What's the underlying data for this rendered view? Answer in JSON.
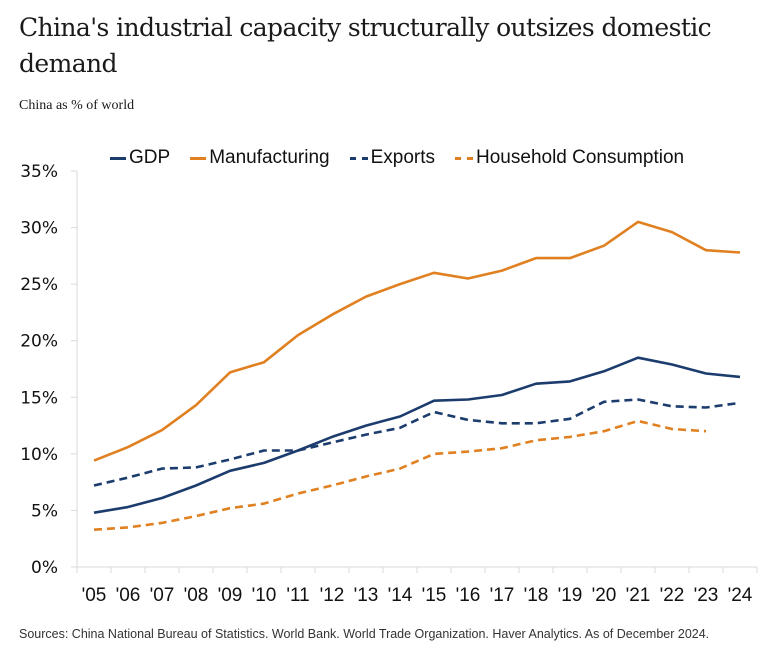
{
  "header": {
    "title": "China's industrial capacity structurally outsizes domestic demand",
    "subtitle": "China as % of world"
  },
  "footer": {
    "source": "Sources: China National Bureau of Statistics. World Bank. World Trade Organization. Haver Analytics. As of December 2024."
  },
  "colors": {
    "navy": "#1c3c6e",
    "orange": "#e08020",
    "axis": "#d9d9d9"
  },
  "chart_data": {
    "type": "line",
    "title": "China's industrial capacity structurally outsizes domestic demand",
    "subtitle": "China as % of world",
    "xlabel": "",
    "ylabel": "",
    "ylim": [
      0,
      35
    ],
    "yticks": [
      0,
      5,
      10,
      15,
      20,
      25,
      30,
      35
    ],
    "ytick_labels": [
      "0%",
      "5%",
      "10%",
      "15%",
      "20%",
      "25%",
      "30%",
      "35%"
    ],
    "grid": false,
    "legend_position": "top",
    "categories": [
      "'05",
      "'06",
      "'07",
      "'08",
      "'09",
      "'10",
      "'11",
      "'12",
      "'13",
      "'14",
      "'15",
      "'16",
      "'17",
      "'18",
      "'19",
      "'20",
      "'21",
      "'22",
      "'23",
      "'24"
    ],
    "series": [
      {
        "name": "GDP",
        "color": "#1c3c6e",
        "style": "solid",
        "values": [
          4.8,
          5.3,
          6.1,
          7.2,
          8.5,
          9.2,
          10.3,
          11.5,
          12.5,
          13.3,
          14.7,
          14.8,
          15.2,
          16.2,
          16.4,
          17.3,
          18.5,
          17.9,
          17.1,
          16.8
        ]
      },
      {
        "name": "Manufacturing",
        "color": "#e08020",
        "style": "solid",
        "values": [
          9.4,
          10.6,
          12.1,
          14.3,
          17.2,
          18.1,
          20.5,
          22.3,
          23.9,
          25.0,
          26.0,
          25.5,
          26.2,
          27.3,
          27.3,
          28.4,
          30.5,
          29.6,
          28.0,
          27.8
        ]
      },
      {
        "name": "Exports",
        "color": "#1c3c6e",
        "style": "dashed",
        "values": [
          7.2,
          7.9,
          8.7,
          8.8,
          9.5,
          10.3,
          10.3,
          11.0,
          11.7,
          12.3,
          13.7,
          13.0,
          12.7,
          12.7,
          13.1,
          14.6,
          14.8,
          14.2,
          14.1,
          14.5
        ]
      },
      {
        "name": "Household Consumption",
        "color": "#e08020",
        "style": "dashed",
        "values": [
          3.3,
          3.5,
          3.9,
          4.5,
          5.2,
          5.6,
          6.5,
          7.2,
          8.0,
          8.7,
          10.0,
          10.2,
          10.5,
          11.2,
          11.5,
          12.0,
          12.9,
          12.2,
          12.0,
          null
        ]
      }
    ]
  }
}
